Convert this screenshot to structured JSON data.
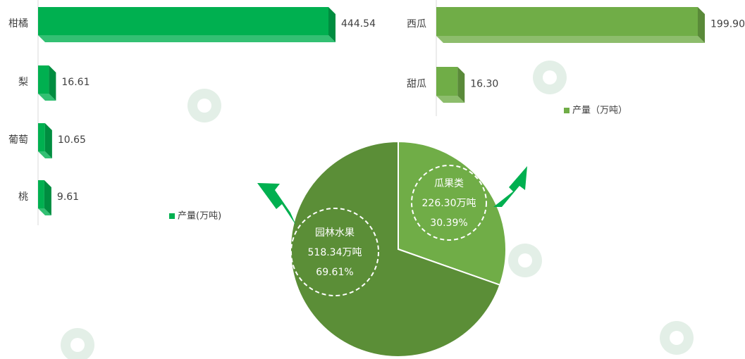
{
  "chart_data": [
    {
      "type": "bar",
      "orientation": "horizontal",
      "categories": [
        "柑橘",
        "梨",
        "葡萄",
        "桃"
      ],
      "series": [
        {
          "name": "产量(万吨)",
          "values": [
            444.54,
            16.61,
            10.65,
            9.61
          ],
          "color": "#00b050"
        }
      ],
      "legend": "bottom",
      "legend_label": "产量(万吨)"
    },
    {
      "type": "bar",
      "orientation": "horizontal",
      "categories": [
        "西瓜",
        "甜瓜"
      ],
      "series": [
        {
          "name": "产量（万吨）",
          "values": [
            199.9,
            16.3
          ],
          "color": "#70ad47"
        }
      ],
      "legend": "bottom",
      "legend_label": "产量（万吨）"
    },
    {
      "type": "pie",
      "slices": [
        {
          "label": "瓜果类",
          "value": 226.3,
          "value_label": "226.30万吨",
          "percent_label": "30.39%",
          "color": "#70ad47"
        },
        {
          "label": "园林水果",
          "value": 518.34,
          "value_label": "518.34万吨",
          "percent_label": "69.61%",
          "color": "#5b8e37"
        }
      ]
    }
  ],
  "arrow_color": "#00b050"
}
